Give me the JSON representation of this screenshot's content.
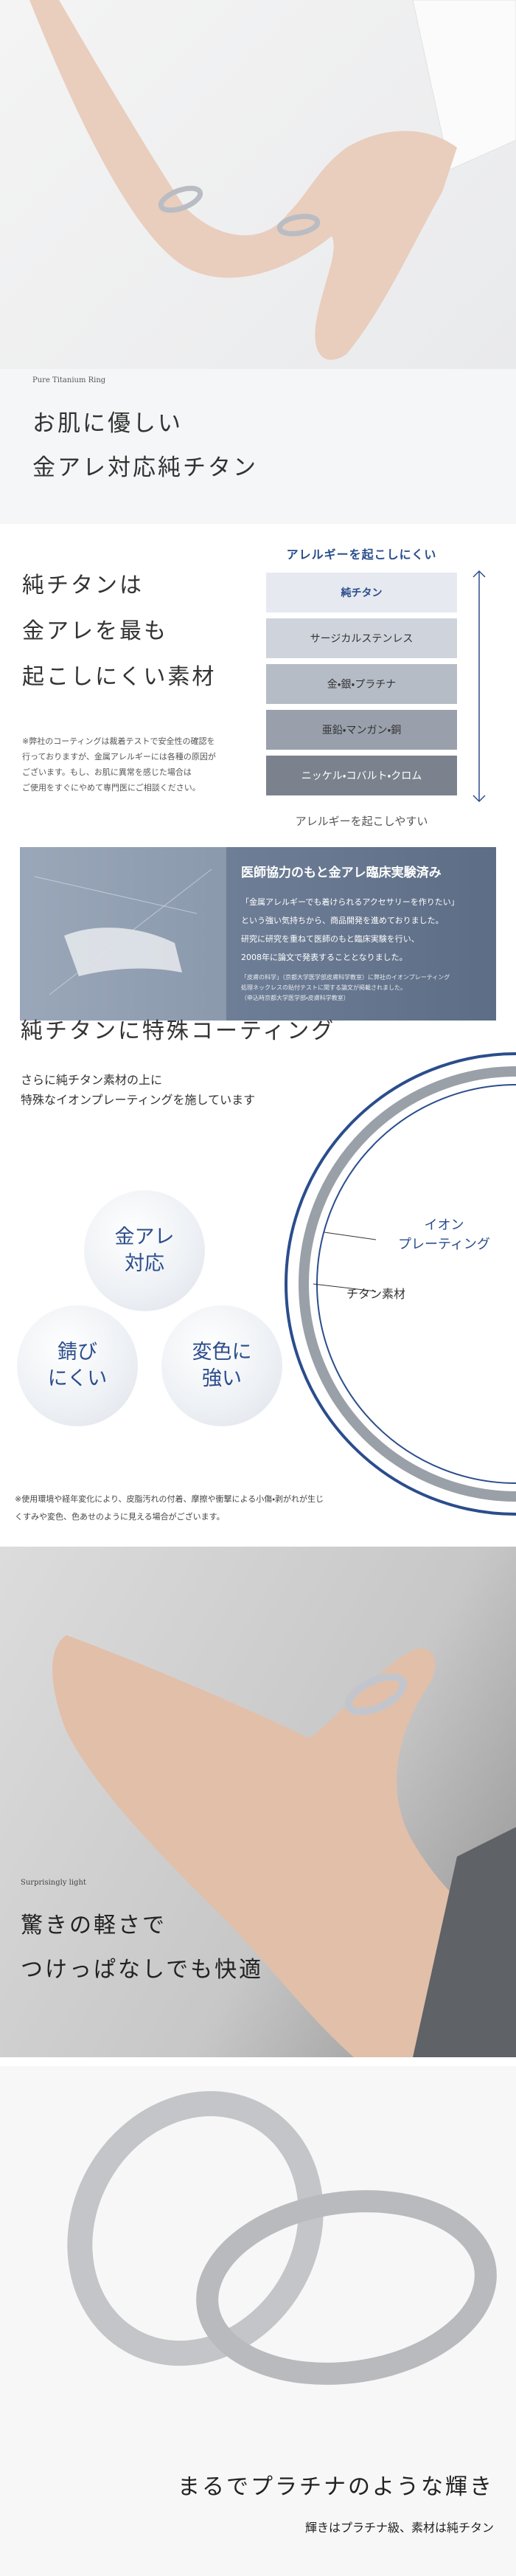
{
  "hero": {
    "eyebrow": "Pure Titanium Ring",
    "title_lines": [
      "お肌に優しい",
      "金アレ対応純チタン"
    ]
  },
  "allergy": {
    "heading_lines": [
      "純チタンは",
      "金アレを最も",
      "起こしにくい素材"
    ],
    "note_lines": [
      "※弊社のコーティングは裁着テストで安全性の確認を",
      "行っておりますが、金属アレルギーには各種の原因が",
      "ございます。もし、お肌に異常を感じた場合は",
      "ご使用をすぐにやめて専門医にご相談ください。"
    ],
    "scale_top": "アレルギーを起こしにくい",
    "scale_bottom": "アレルギーを起こしやすい",
    "materials": [
      "純チタン",
      "サージカルステンレス",
      "金・銀・プラチナ",
      "亜鉛・マンガン・銅",
      "ニッケル・コバルト・クロム"
    ]
  },
  "clinical": {
    "title": "医師協力のもと金アレ臨床実験済み",
    "body_lines": [
      "「金属アレルギーでも着けられるアクセサリーを作りたい」",
      "という強い気持ちから、商品開発を進めておりました。",
      "研究に研究を重ねて医師のもと臨床実験を行い、",
      "2008年に論文で発表することとなりました。"
    ],
    "note_lines": [
      "「皮膚の科学」（京都大学医学部皮膚科学教室）に弊社のイオンプレーティング",
      "処理ネックレスの貼付テストに関する論文が掲載されました。",
      "（申込時京都大学医学部・皮膚科学教室）"
    ]
  },
  "coating": {
    "title": "純チタンに特殊コーティング",
    "sub_lines": [
      "さらに純チタン素材の上に",
      "特殊なイオンプレーティングを施しています"
    ],
    "features": [
      "金アレ\n対応",
      "錆び\nにくい",
      "変色に\n強い"
    ],
    "label_outer": "イオン\nプレーティング",
    "label_inner": "チタン素材",
    "note_lines": [
      "※使用環境や経年変化により、皮脂汚れの付着、摩擦や衝撃による小傷・剥がれが生じ",
      "くすみや変色、色あせのように見える場合がございます。"
    ]
  },
  "light": {
    "eyebrow": "Surprisingly light",
    "title_lines": [
      "驚きの軽さで",
      "つけっぱなしでも快適"
    ]
  },
  "shine": {
    "title": "まるでプラチナのような輝き",
    "subtitle": "輝きはプラチナ級、素材は純チタン"
  }
}
